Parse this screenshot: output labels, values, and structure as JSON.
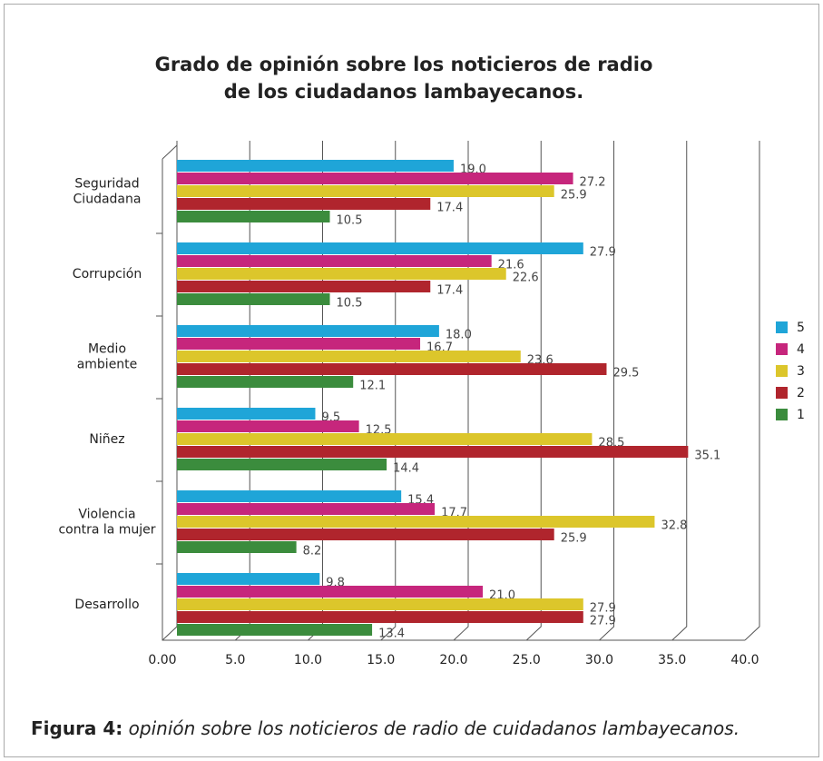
{
  "chart_data": {
    "type": "bar",
    "orientation": "horizontal",
    "title": "Grado de opinión sobre los noticieros de radio\nde los ciudadanos lambayecanos.",
    "categories": [
      "Seguridad\nCiudadana",
      "Corrupción",
      "Medio\nambiente",
      "Niñez",
      "Violencia\ncontra la mujer",
      "Desarrollo"
    ],
    "series": [
      {
        "name": "5",
        "color": "#1fa5d8",
        "values": [
          19.0,
          27.9,
          18.0,
          9.5,
          15.4,
          9.8
        ],
        "value_labels": [
          "19.0",
          "27.9",
          "18.0",
          "9.5",
          "15.4",
          "9.8"
        ]
      },
      {
        "name": "4",
        "color": "#c6267c",
        "values": [
          27.2,
          21.6,
          16.7,
          12.5,
          17.7,
          21.0
        ],
        "value_labels": [
          "27.2",
          "21.6",
          "16.7",
          "12.5",
          "17.7",
          "21.0"
        ]
      },
      {
        "name": "3",
        "color": "#dcc62b",
        "values": [
          25.9,
          22.6,
          23.6,
          28.5,
          32.8,
          27.9
        ],
        "value_labels": [
          "25.9",
          "22.6",
          "23.6",
          "28.5",
          "32.8",
          "27.9"
        ]
      },
      {
        "name": "2",
        "color": "#b0252d",
        "values": [
          17.4,
          17.4,
          29.5,
          35.1,
          25.9,
          27.9
        ],
        "value_labels": [
          "17.4",
          "17.4",
          "29.5",
          "35.1",
          "25.9",
          "27.9"
        ]
      },
      {
        "name": "1",
        "color": "#3b8c3d",
        "values": [
          10.5,
          10.5,
          12.1,
          14.4,
          8.2,
          13.4
        ],
        "value_labels": [
          "10.5",
          "10.5",
          "12.1",
          "14.4",
          "8.2",
          "13.4"
        ]
      }
    ],
    "xlim": [
      0,
      40
    ],
    "xticks": [
      {
        "value": 0,
        "label": "0.00"
      },
      {
        "value": 5,
        "label": "5.0"
      },
      {
        "value": 10,
        "label": "10.0"
      },
      {
        "value": 15,
        "label": "15.0"
      },
      {
        "value": 20,
        "label": "20.0"
      },
      {
        "value": 25,
        "label": "25.0"
      },
      {
        "value": 30,
        "label": "30.0"
      },
      {
        "value": 35,
        "label": "35.0"
      },
      {
        "value": 40,
        "label": "40.0"
      }
    ],
    "grid": true,
    "legend": "right"
  },
  "caption": {
    "label": "Figura 4:",
    "text": "opinión sobre los noticieros de radio de cuidadanos lambayecanos."
  }
}
